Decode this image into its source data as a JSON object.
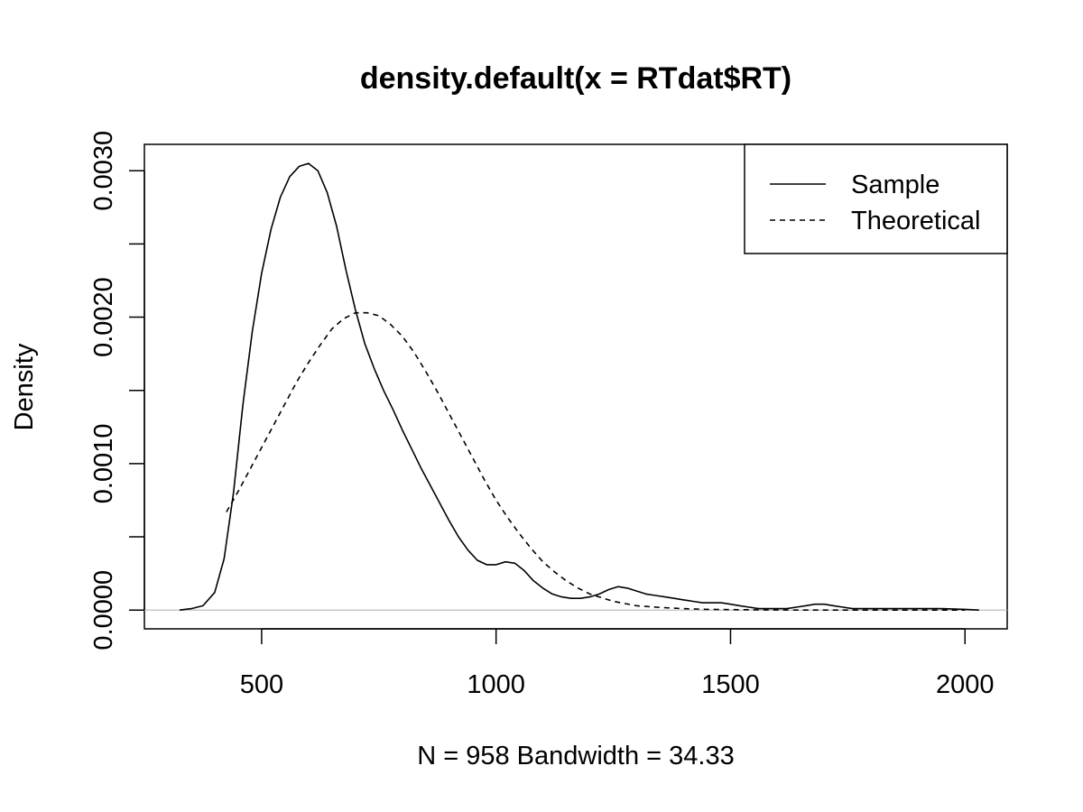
{
  "chart_data": {
    "type": "line",
    "title": "density.default(x = RTdat$RT)",
    "xlabel": "N = 958   Bandwidth = 34.33",
    "ylabel": "Density",
    "xlim": [
      250,
      2090
    ],
    "ylim": [
      -0.000128,
      0.00318
    ],
    "x_ticks": [
      500,
      1000,
      1500,
      2000
    ],
    "x_tick_labels": [
      "500",
      "1000",
      "1500",
      "2000"
    ],
    "y_ticks": [
      0.0,
      0.0005,
      0.001,
      0.0015,
      0.002,
      0.0025,
      0.003
    ],
    "y_tick_labels": [
      "0.0000",
      "",
      "0.0010",
      "",
      "0.0020",
      "",
      "0.0030"
    ],
    "grid": false,
    "zero_line": true,
    "zero_line_color": "#bebebe",
    "line_color": "#000000",
    "legend_position": "top-right",
    "legend": [
      {
        "label": "Sample",
        "style": "solid"
      },
      {
        "label": "Theoretical",
        "style": "dashed"
      }
    ],
    "series": [
      {
        "name": "Sample",
        "style": "solid",
        "x": [
          325,
          350,
          375,
          400,
          420,
          440,
          460,
          480,
          500,
          520,
          540,
          560,
          580,
          600,
          620,
          640,
          660,
          680,
          700,
          720,
          740,
          760,
          780,
          800,
          820,
          840,
          860,
          880,
          900,
          920,
          940,
          960,
          980,
          1000,
          1020,
          1040,
          1060,
          1080,
          1100,
          1120,
          1140,
          1160,
          1180,
          1200,
          1220,
          1240,
          1260,
          1280,
          1300,
          1320,
          1340,
          1360,
          1380,
          1400,
          1420,
          1440,
          1460,
          1480,
          1500,
          1520,
          1540,
          1560,
          1580,
          1600,
          1620,
          1640,
          1660,
          1680,
          1700,
          1720,
          1740,
          1760,
          1800,
          1850,
          1900,
          1950,
          2000,
          2030
        ],
        "y": [
          0.0,
          1e-05,
          3e-05,
          0.00012,
          0.00035,
          0.0008,
          0.0014,
          0.0019,
          0.0023,
          0.0026,
          0.00282,
          0.00296,
          0.00303,
          0.00305,
          0.003,
          0.00285,
          0.00262,
          0.00232,
          0.00205,
          0.00182,
          0.00165,
          0.0015,
          0.00137,
          0.00123,
          0.0011,
          0.00097,
          0.00085,
          0.00073,
          0.00061,
          0.0005,
          0.00041,
          0.00034,
          0.00031,
          0.00031,
          0.00033,
          0.00032,
          0.00027,
          0.0002,
          0.00015,
          0.00011,
          9e-05,
          8e-05,
          8e-05,
          9e-05,
          0.00011,
          0.00014,
          0.00016,
          0.00015,
          0.00013,
          0.00011,
          0.0001,
          9e-05,
          8e-05,
          7e-05,
          6e-05,
          5e-05,
          5e-05,
          5e-05,
          4e-05,
          3e-05,
          2e-05,
          1e-05,
          1e-05,
          1e-05,
          1e-05,
          2e-05,
          3e-05,
          4e-05,
          4e-05,
          3e-05,
          2e-05,
          1e-05,
          1e-05,
          1e-05,
          1e-05,
          1e-05,
          5e-06,
          0.0
        ]
      },
      {
        "name": "Theoretical",
        "style": "dashed",
        "x": [
          425,
          450,
          475,
          500,
          525,
          550,
          575,
          600,
          625,
          650,
          675,
          700,
          725,
          750,
          775,
          800,
          825,
          850,
          875,
          900,
          925,
          950,
          975,
          1000,
          1025,
          1050,
          1075,
          1100,
          1125,
          1150,
          1175,
          1200,
          1250,
          1300,
          1350,
          1400,
          1450,
          1500,
          1600,
          1700,
          1800,
          1900,
          2000
        ],
        "y": [
          0.00067,
          0.00081,
          0.00096,
          0.00111,
          0.00126,
          0.00141,
          0.00156,
          0.00169,
          0.00181,
          0.00192,
          0.00199,
          0.00203,
          0.00203,
          0.00201,
          0.00195,
          0.00187,
          0.00176,
          0.00163,
          0.00149,
          0.00134,
          0.00119,
          0.00104,
          0.00089,
          0.00075,
          0.00063,
          0.00052,
          0.00042,
          0.00033,
          0.00026,
          0.0002,
          0.00015,
          0.00011,
          6e-05,
          3e-05,
          1.8e-05,
          1e-05,
          5e-06,
          3e-06,
          1e-06,
          0.0,
          0.0,
          0.0,
          0.0
        ]
      }
    ]
  }
}
